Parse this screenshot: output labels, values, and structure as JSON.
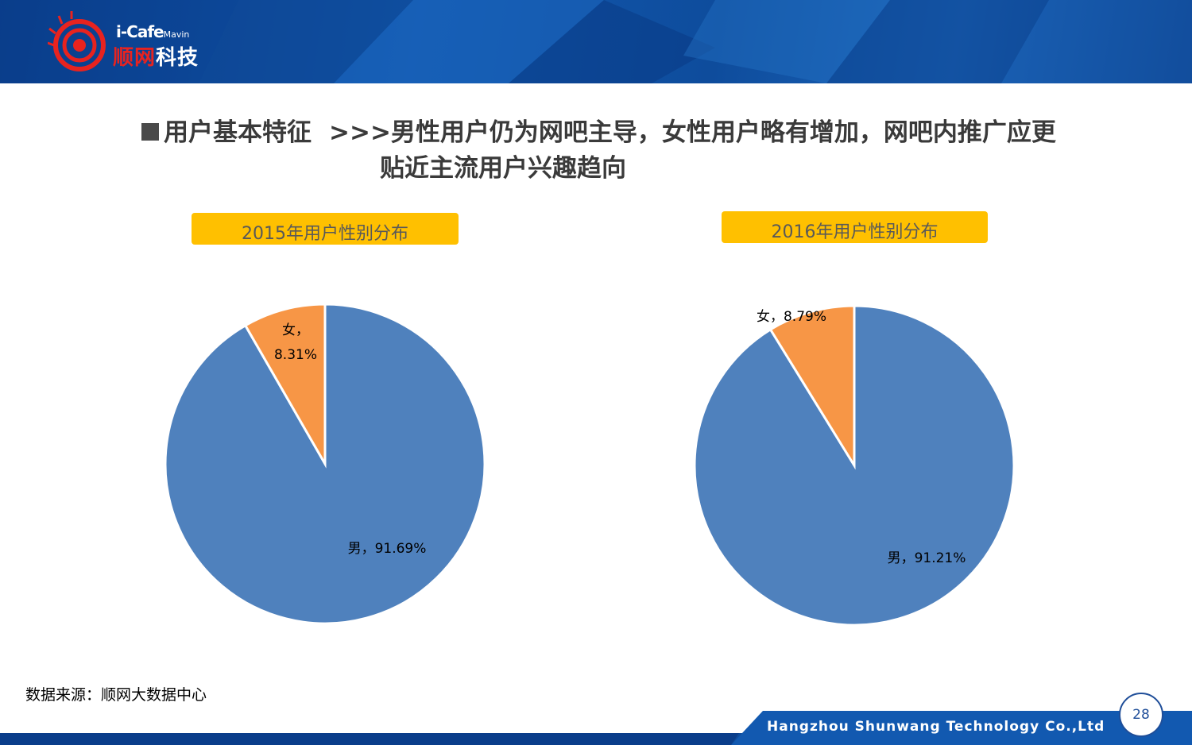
{
  "logo": {
    "brand": "i-Cafe",
    "brand_sub": "Mavin",
    "name_red": "顺网",
    "name_white": "科技"
  },
  "title": {
    "section": "用户基本特征",
    "headline_line1": ">>>男性用户仍为网吧主导，女性用户略有增加，网吧内推广应更",
    "headline_line2": "贴近主流用户兴趣趋向"
  },
  "colors": {
    "male": "#4f81bd",
    "female": "#f79646",
    "label_bg": "#ffc000",
    "header_blue": "#1259b0"
  },
  "chart_data": [
    {
      "type": "pie",
      "title": "2015年用户性别分布",
      "slices": [
        {
          "name": "男",
          "value": 91.69,
          "label": "男，91.69%"
        },
        {
          "name": "女",
          "value": 8.31,
          "label_line1": "女，",
          "label_line2": "8.31%"
        }
      ]
    },
    {
      "type": "pie",
      "title": "2016年用户性别分布",
      "slices": [
        {
          "name": "男",
          "value": 91.21,
          "label": "男，91.21%"
        },
        {
          "name": "女",
          "value": 8.79,
          "label": "女，8.79%"
        }
      ]
    }
  ],
  "source": "数据来源：顺网大数据中心",
  "footer": {
    "company": "Hangzhou Shunwang Technology Co.,Ltd",
    "page_number": "28"
  }
}
